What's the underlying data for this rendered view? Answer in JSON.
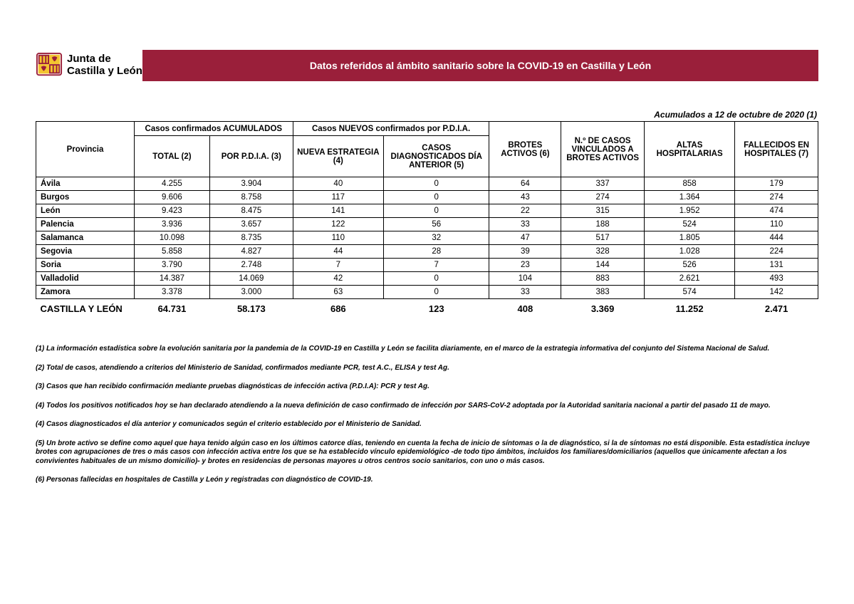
{
  "logo": {
    "line1": "Junta de",
    "line2": "Castilla y León"
  },
  "title": "Datos referidos al ámbito sanitario sobre la COVID-19 en Castilla y León",
  "date_line": "Acumulados a 12 de octubre de 2020 (1)",
  "colors": {
    "title_bg": "#9a1f3a",
    "title_fg": "#ffffff",
    "border": "#000000"
  },
  "table": {
    "group_headers": {
      "provincia": "Provincia",
      "acumulados": "Casos confirmados ACUMULADOS",
      "nuevos": "Casos NUEVOS confirmados por P.D.I.A."
    },
    "col_headers": {
      "total": "TOTAL (2)",
      "pdia": "POR P.D.I.A. (3)",
      "nueva": "NUEVA ESTRATEGIA (4)",
      "dia_ant": "CASOS DIAGNOSTICADOS DÍA ANTERIOR (5)",
      "brotes": "BROTES ACTIVOS (6)",
      "vinc": "N.º DE CASOS VINCULADOS A BROTES ACTIVOS",
      "altas": "ALTAS HOSPITALARIAS",
      "fallec": "FALLECIDOS EN HOSPITALES (7)"
    },
    "rows": [
      {
        "prov": "Ávila",
        "total": "4.255",
        "pdia": "3.904",
        "nueva": "40",
        "dia": "0",
        "brotes": "64",
        "vinc": "337",
        "altas": "858",
        "fall": "179"
      },
      {
        "prov": "Burgos",
        "total": "9.606",
        "pdia": "8.758",
        "nueva": "117",
        "dia": "0",
        "brotes": "43",
        "vinc": "274",
        "altas": "1.364",
        "fall": "274"
      },
      {
        "prov": "León",
        "total": "9.423",
        "pdia": "8.475",
        "nueva": "141",
        "dia": "0",
        "brotes": "22",
        "vinc": "315",
        "altas": "1.952",
        "fall": "474"
      },
      {
        "prov": "Palencia",
        "total": "3.936",
        "pdia": "3.657",
        "nueva": "122",
        "dia": "56",
        "brotes": "33",
        "vinc": "188",
        "altas": "524",
        "fall": "110"
      },
      {
        "prov": "Salamanca",
        "total": "10.098",
        "pdia": "8.735",
        "nueva": "110",
        "dia": "32",
        "brotes": "47",
        "vinc": "517",
        "altas": "1.805",
        "fall": "444"
      },
      {
        "prov": "Segovia",
        "total": "5.858",
        "pdia": "4.827",
        "nueva": "44",
        "dia": "28",
        "brotes": "39",
        "vinc": "328",
        "altas": "1.028",
        "fall": "224"
      },
      {
        "prov": "Soria",
        "total": "3.790",
        "pdia": "2.748",
        "nueva": "7",
        "dia": "7",
        "brotes": "23",
        "vinc": "144",
        "altas": "526",
        "fall": "131"
      },
      {
        "prov": "Valladolid",
        "total": "14.387",
        "pdia": "14.069",
        "nueva": "42",
        "dia": "0",
        "brotes": "104",
        "vinc": "883",
        "altas": "2.621",
        "fall": "493"
      },
      {
        "prov": "Zamora",
        "total": "3.378",
        "pdia": "3.000",
        "nueva": "63",
        "dia": "0",
        "brotes": "33",
        "vinc": "383",
        "altas": "574",
        "fall": "142"
      }
    ],
    "total_row": {
      "prov": "CASTILLA Y LEÓN",
      "total": "64.731",
      "pdia": "58.173",
      "nueva": "686",
      "dia": "123",
      "brotes": "408",
      "vinc": "3.369",
      "altas": "11.252",
      "fall": "2.471"
    }
  },
  "notes": [
    "(1) La información estadística sobre la evolución sanitaria por la pandemia de la COVID-19 en Castilla y León se facilita diariamente, en el marco de la estrategia informativa del conjunto del Sistema Nacional de Salud.",
    "(2) Total de casos, atendiendo a criterios del Ministerio de Sanidad, confirmados mediante PCR, test A.C., ELISA y test Ag.",
    "(3) Casos que han recibido confirmación mediante pruebas diagnósticas de infección activa (P.D.I.A): PCR y test Ag.",
    "(4) Todos los positivos notificados hoy se han declarado atendiendo a la nueva definición de caso confirmado de infección por SARS-CoV-2 adoptada por la Autoridad sanitaria nacional a partir del pasado 11 de mayo.",
    "(4) Casos diagnosticados el día anterior y comunicados según el criterio establecido por el Ministerio de Sanidad.",
    "(5) Un brote activo se define como aquel que haya tenido algún caso en los últimos catorce días, teniendo en cuenta la fecha de inicio de síntomas o la de diagnóstico, si la de síntomas no está disponible. Esta estadística incluye brotes con agrupaciones de tres o más casos con infección activa entre los que se ha establecido vínculo epidemiológico -de todo tipo ámbitos, incluidos los familiares/domiciliarios (aquellos que únicamente afectan a los convivientes habituales de un mismo domicilio)- y brotes en residencias de personas mayores u otros centros socio sanitarios, con uno o más casos.",
    "(6) Personas fallecidas en hospitales de Castilla y León y registradas con diagnóstico de COVID-19."
  ]
}
